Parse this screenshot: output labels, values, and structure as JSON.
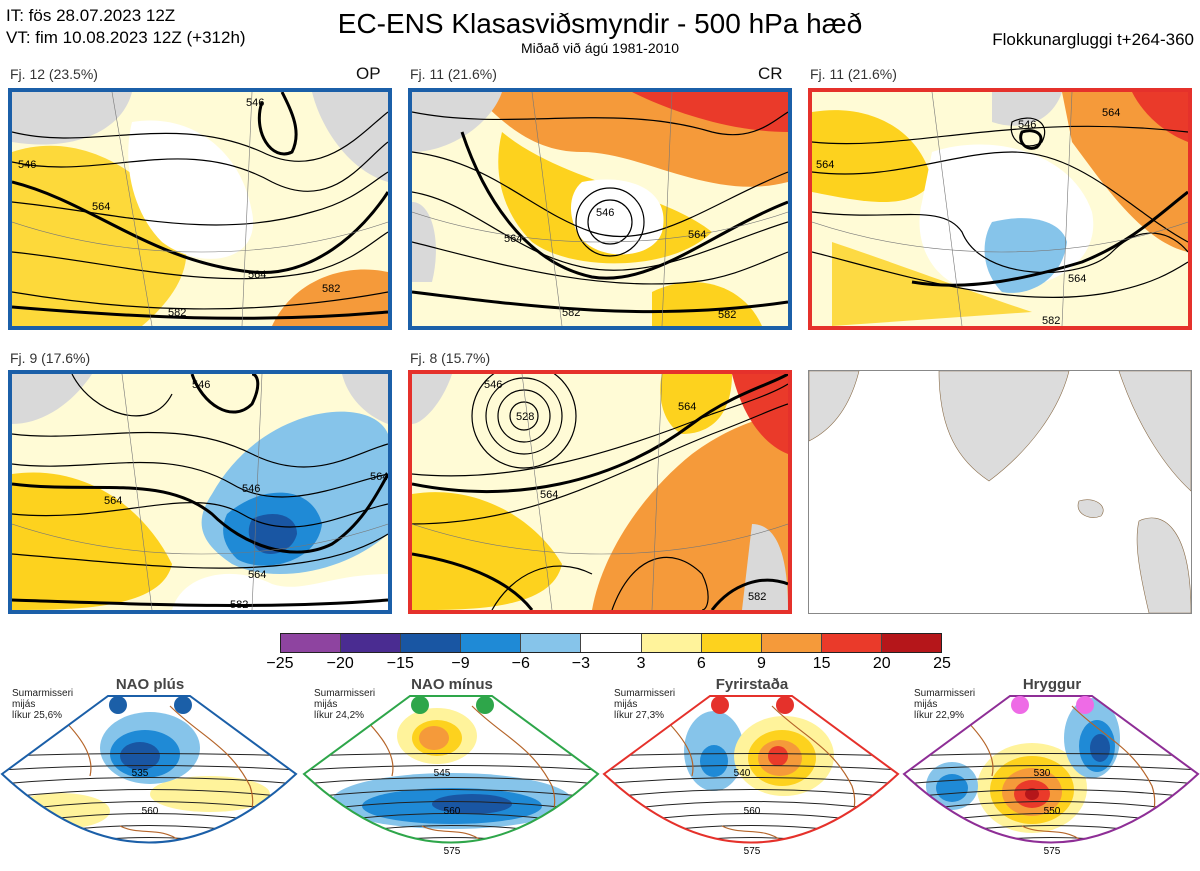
{
  "header": {
    "it_line": "IT: fös 28.07.2023 12Z",
    "vt_line": "VT: fim 10.08.2023 12Z  (+312h)",
    "title": "EC-ENS Klasasviðsmyndir - 500 hPa hæð",
    "subtitle": "Miðað við ágú 1981-2010",
    "window": "Flokkunargluggi t+264-360"
  },
  "colors": {
    "blue_frame": "#1b5fa8",
    "red_frame": "#e5312b",
    "map_bg": "#fffbd6",
    "land": "#d9d9d9"
  },
  "panels": [
    {
      "label": "Fj. 12 (23.5%)",
      "tag": "OP",
      "frame": "blue",
      "contours": [
        "546",
        "546",
        "564",
        "564",
        "582",
        "582"
      ]
    },
    {
      "label": "Fj. 11 (21.6%)",
      "tag": "CR",
      "frame": "blue",
      "contours": [
        "546",
        "564",
        "564",
        "582",
        "582"
      ]
    },
    {
      "label": "Fj. 11 (21.6%)",
      "tag": "",
      "frame": "red",
      "contours": [
        "546",
        "564",
        "564",
        "564",
        "582"
      ]
    },
    {
      "label": "Fj. 9 (17.6%)",
      "tag": "",
      "frame": "blue",
      "contours": [
        "546",
        "546",
        "564",
        "564",
        "564",
        "582"
      ]
    },
    {
      "label": "Fj. 8 (15.7%)",
      "tag": "",
      "frame": "red",
      "contours": [
        "528",
        "546",
        "564",
        "564",
        "582"
      ]
    }
  ],
  "colorbar": {
    "ticks": [
      "−25",
      "−20",
      "−15",
      "−9",
      "−6",
      "−3",
      "3",
      "6",
      "9",
      "15",
      "20",
      "25"
    ],
    "colors": [
      "#8e44a0",
      "#4a2c91",
      "#1956a3",
      "#1f8ad6",
      "#86c4ea",
      "#ffffff",
      "#fff39b",
      "#fdd21e",
      "#f59a3a",
      "#ea3a2a",
      "#b5161a"
    ]
  },
  "regimes": [
    {
      "title": "NAO plús",
      "note1": "Sumarmisseri",
      "note2": "mijás",
      "note3": "líkur 25,6%",
      "frame": "#1b5fa8",
      "dot": "#1b5fa8",
      "contours": [
        "535",
        "560"
      ]
    },
    {
      "title": "NAO mínus",
      "note1": "Sumarmisseri",
      "note2": "mijás",
      "note3": "líkur 24,2%",
      "frame": "#2ea64a",
      "dot": "#2ea64a",
      "contours": [
        "545",
        "560",
        "575"
      ]
    },
    {
      "title": "Fyrirstaða",
      "note1": "Sumarmisseri",
      "note2": "mijás",
      "note3": "líkur 27,3%",
      "frame": "#e5312b",
      "dot": "#e5312b",
      "contours": [
        "540",
        "560",
        "575"
      ]
    },
    {
      "title": "Hryggur",
      "note1": "Sumarmisseri",
      "note2": "mijás",
      "note3": "líkur 22,9%",
      "frame": "#8e2e96",
      "dot": "#ee6be6",
      "contours": [
        "530",
        "550",
        "575"
      ]
    }
  ]
}
